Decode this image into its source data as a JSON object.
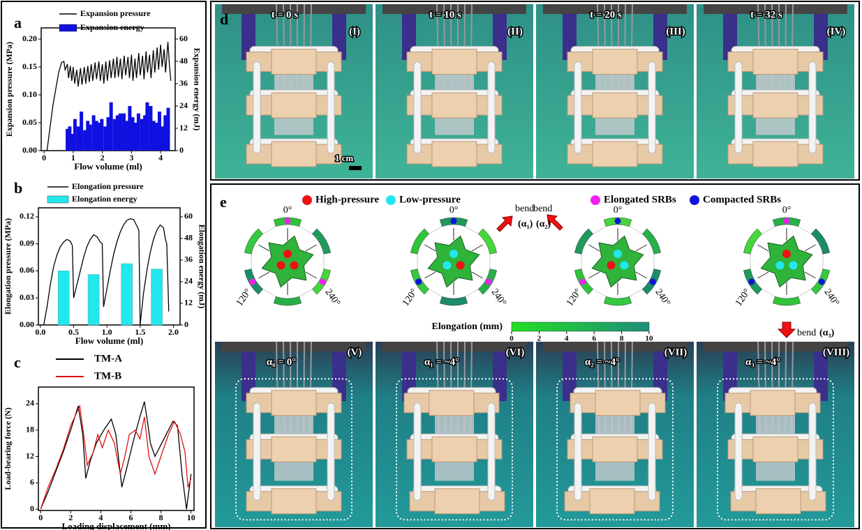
{
  "panel_labels": [
    "a",
    "b",
    "c",
    "d",
    "e"
  ],
  "chart_data": [
    {
      "type": "line",
      "xlabel": "Flow volume (ml)",
      "ylabel": "Expansion pressure (MPa)",
      "y2label": "Expansion energy (mJ)",
      "xlim": [
        -0.1,
        4.5
      ],
      "xticks": [
        0,
        1,
        2,
        3,
        4
      ],
      "ylim": [
        0,
        0.22
      ],
      "yticks": [
        {
          "value": 0,
          "label": "0.00"
        },
        {
          "value": 0.05,
          "label": "0.05"
        },
        {
          "value": 0.1,
          "label": "0.10"
        },
        {
          "value": 0.15,
          "label": "0.15"
        },
        {
          "value": 0.2,
          "label": "0.20"
        }
      ],
      "y2lim": [
        0,
        66
      ],
      "y2ticks": [
        0,
        12,
        24,
        36,
        48,
        60
      ],
      "grid": false,
      "series": [
        {
          "name": "Expansion pressure",
          "color": "#000000",
          "type": "line",
          "x": [
            0.1,
            0.2,
            0.3,
            0.4,
            0.5,
            0.6,
            0.68,
            0.72,
            0.8,
            0.84,
            0.9,
            0.95,
            1.0,
            1.05,
            1.12,
            1.17,
            1.25,
            1.3,
            1.38,
            1.43,
            1.5,
            1.55,
            1.62,
            1.67,
            1.75,
            1.8,
            1.88,
            1.93,
            2.0,
            2.05,
            2.12,
            2.17,
            2.25,
            2.3,
            2.38,
            2.43,
            2.5,
            2.55,
            2.62,
            2.67,
            2.75,
            2.8,
            2.88,
            2.93,
            3.0,
            3.05,
            3.12,
            3.17,
            3.25,
            3.3,
            3.38,
            3.43,
            3.5,
            3.55,
            3.62,
            3.67,
            3.75,
            3.8,
            3.88,
            3.93,
            4.0,
            4.05,
            4.12,
            4.17,
            4.25,
            4.3,
            4.35
          ],
          "values": [
            0,
            0.04,
            0.08,
            0.11,
            0.14,
            0.158,
            0.16,
            0.145,
            0.155,
            0.13,
            0.152,
            0.125,
            0.15,
            0.12,
            0.145,
            0.115,
            0.148,
            0.118,
            0.15,
            0.12,
            0.152,
            0.123,
            0.155,
            0.125,
            0.158,
            0.128,
            0.16,
            0.125,
            0.155,
            0.12,
            0.16,
            0.125,
            0.162,
            0.13,
            0.165,
            0.13,
            0.168,
            0.132,
            0.165,
            0.128,
            0.17,
            0.135,
            0.168,
            0.13,
            0.172,
            0.125,
            0.165,
            0.13,
            0.175,
            0.135,
            0.17,
            0.128,
            0.178,
            0.14,
            0.172,
            0.13,
            0.18,
            0.14,
            0.185,
            0.145,
            0.19,
            0.15,
            0.182,
            0.14,
            0.195,
            0.155,
            0.125
          ]
        },
        {
          "name": "Expansion energy",
          "color": "#1010e0",
          "type": "bar",
          "axis": "y2",
          "x": [
            0.8,
            0.88,
            0.97,
            1.06,
            1.18,
            1.28,
            1.4,
            1.5,
            1.58,
            1.7,
            1.8,
            1.9,
            1.98,
            2.1,
            2.2,
            2.3,
            2.42,
            2.52,
            2.62,
            2.74,
            2.84,
            2.94,
            3.04,
            3.14,
            3.24,
            3.36,
            3.46,
            3.54,
            3.66,
            3.76,
            3.86,
            3.96,
            4.06,
            4.16,
            4.26
          ],
          "values": [
            11.7,
            13,
            9,
            17,
            13,
            21,
            11,
            16,
            14,
            19,
            16,
            15,
            17,
            13,
            18,
            26,
            17,
            19,
            20,
            20,
            16,
            24,
            18,
            15,
            20,
            17,
            19,
            26,
            24,
            16,
            15,
            21,
            13,
            19,
            23
          ]
        }
      ]
    },
    {
      "type": "line",
      "xlabel": "Flow volume (ml)",
      "ylabel": "Elongation pressure (MPa)",
      "y2label": "Elongation energy (mJ)",
      "xlim": [
        -0.03,
        2.1
      ],
      "xticks": [
        {
          "value": 0,
          "label": "0.0"
        },
        {
          "value": 0.5,
          "label": "0.5"
        },
        {
          "value": 1,
          "label": "1.0"
        },
        {
          "value": 1.5,
          "label": "1.5"
        },
        {
          "value": 2,
          "label": "2.0"
        }
      ],
      "ylim": [
        0,
        0.13
      ],
      "yticks": [
        {
          "value": 0,
          "label": "0.00"
        },
        {
          "value": 0.03,
          "label": "0.03"
        },
        {
          "value": 0.06,
          "label": "0.06"
        },
        {
          "value": 0.09,
          "label": "0.09"
        },
        {
          "value": 0.12,
          "label": "0.12"
        }
      ],
      "y2lim": [
        0,
        65
      ],
      "y2ticks": [
        0,
        12,
        24,
        36,
        48,
        60
      ],
      "grid": false,
      "series": [
        {
          "name": "Elongation pressure",
          "color": "#000000",
          "type": "line",
          "x": [
            0.05,
            0.1,
            0.15,
            0.2,
            0.25,
            0.3,
            0.35,
            0.4,
            0.45,
            0.48,
            0.5,
            0.55,
            0.6,
            0.65,
            0.7,
            0.75,
            0.8,
            0.85,
            0.9,
            0.93,
            0.95,
            1.0,
            1.05,
            1.1,
            1.15,
            1.2,
            1.25,
            1.3,
            1.35,
            1.4,
            1.45,
            1.48,
            1.5,
            1.55,
            1.6,
            1.65,
            1.7,
            1.75,
            1.8,
            1.85,
            1.88,
            1.9,
            1.93
          ],
          "values": [
            0,
            0.02,
            0.045,
            0.065,
            0.078,
            0.087,
            0.092,
            0.095,
            0.093,
            0.088,
            0.03,
            0.045,
            0.06,
            0.075,
            0.087,
            0.095,
            0.1,
            0.098,
            0.092,
            0.09,
            0.02,
            0.04,
            0.06,
            0.078,
            0.092,
            0.103,
            0.111,
            0.116,
            0.118,
            0.117,
            0.11,
            0.105,
            0.0,
            0.035,
            0.06,
            0.08,
            0.095,
            0.105,
            0.111,
            0.108,
            0.095,
            0.09,
            0.015
          ]
        },
        {
          "name": "Elongation energy",
          "color": "#22e8ee",
          "type": "bar",
          "axis": "y2",
          "x": [
            0.35,
            0.8,
            1.3,
            1.75
          ],
          "values": [
            30,
            28,
            34,
            31
          ]
        }
      ]
    },
    {
      "type": "line",
      "xlabel": "Loading displacement (mm)",
      "ylabel": "Load-bearing force (N)",
      "xlim": [
        -0.15,
        10.2
      ],
      "xticks": [
        0,
        2,
        4,
        6,
        8,
        10
      ],
      "ylim": [
        -0.3,
        27.8
      ],
      "yticks": [
        0,
        6,
        12,
        18,
        24
      ],
      "grid": false,
      "series": [
        {
          "name": "TM-A",
          "color": "#000000",
          "type": "line",
          "x": [
            0,
            0.5,
            1,
            1.5,
            2,
            2.5,
            2.8,
            3.0,
            3.3,
            3.7,
            4.2,
            4.7,
            5.0,
            5.4,
            5.7,
            6.2,
            6.6,
            6.9,
            7.1,
            7.3,
            7.6,
            8.2,
            8.8,
            9.1,
            9.4,
            9.7,
            10
          ],
          "values": [
            0,
            4,
            8.5,
            13,
            18,
            23.5,
            17,
            7,
            11,
            15,
            18,
            20.5,
            17,
            5,
            9,
            16,
            21,
            24.5,
            20,
            15,
            12,
            16,
            20,
            19,
            8,
            0,
            8
          ]
        },
        {
          "name": "TM-B",
          "color": "#e01010",
          "type": "line",
          "x": [
            0,
            0.5,
            1,
            1.5,
            2,
            2.6,
            2.9,
            3.1,
            3.5,
            3.8,
            4.1,
            4.5,
            4.9,
            5.3,
            5.6,
            5.9,
            6.3,
            6.6,
            6.9,
            7.2,
            7.6,
            8.0,
            8.5,
            8.9,
            9.3,
            9.6,
            9.8,
            10
          ],
          "values": [
            0,
            5,
            9,
            13.5,
            19,
            23.5,
            16,
            10,
            13,
            17,
            14,
            18,
            15,
            8,
            12,
            17,
            18,
            16,
            21,
            12,
            8,
            12,
            17,
            20,
            17,
            13,
            5,
            7
          ]
        }
      ]
    }
  ],
  "photos_d": [
    {
      "time": "t = 0 s",
      "label": "(I)"
    },
    {
      "time": "t = 10 s",
      "label": "(II)"
    },
    {
      "time": "t = 20 s",
      "label": "(III)"
    },
    {
      "time": "t = 32 s",
      "label": "(IV)"
    }
  ],
  "scale_bar": "1 cm",
  "schematic": {
    "legend": [
      {
        "label": "High-pressure",
        "color": "#ee1111"
      },
      {
        "label": "Low-pressure",
        "color": "#22e8ee"
      },
      {
        "label": "Elongated SRBs",
        "color": "#ee22ee"
      },
      {
        "label": "Compacted SRBs",
        "color": "#1111dd"
      }
    ],
    "angles": [
      "0°",
      "120°",
      "240°"
    ],
    "bend": "bend",
    "bend_angles": [
      "(α₁)",
      "(α₂)",
      "(α₃)"
    ],
    "colorbar": {
      "title": "Elongation (mm)",
      "lim": [
        0,
        10
      ],
      "ticks": [
        0,
        2,
        4,
        6,
        8,
        10
      ],
      "colors": [
        "#22e022",
        "#1e8c7a"
      ]
    }
  },
  "photos_e": [
    {
      "angle": "α₀ = 0°",
      "label": "(V)"
    },
    {
      "angle": "α₁ = ~4°",
      "label": "(VI)"
    },
    {
      "angle": "α₂ = ~4°",
      "label": "(VII)"
    },
    {
      "angle": "α₃ = ~4°",
      "label": "(VIII)"
    }
  ]
}
